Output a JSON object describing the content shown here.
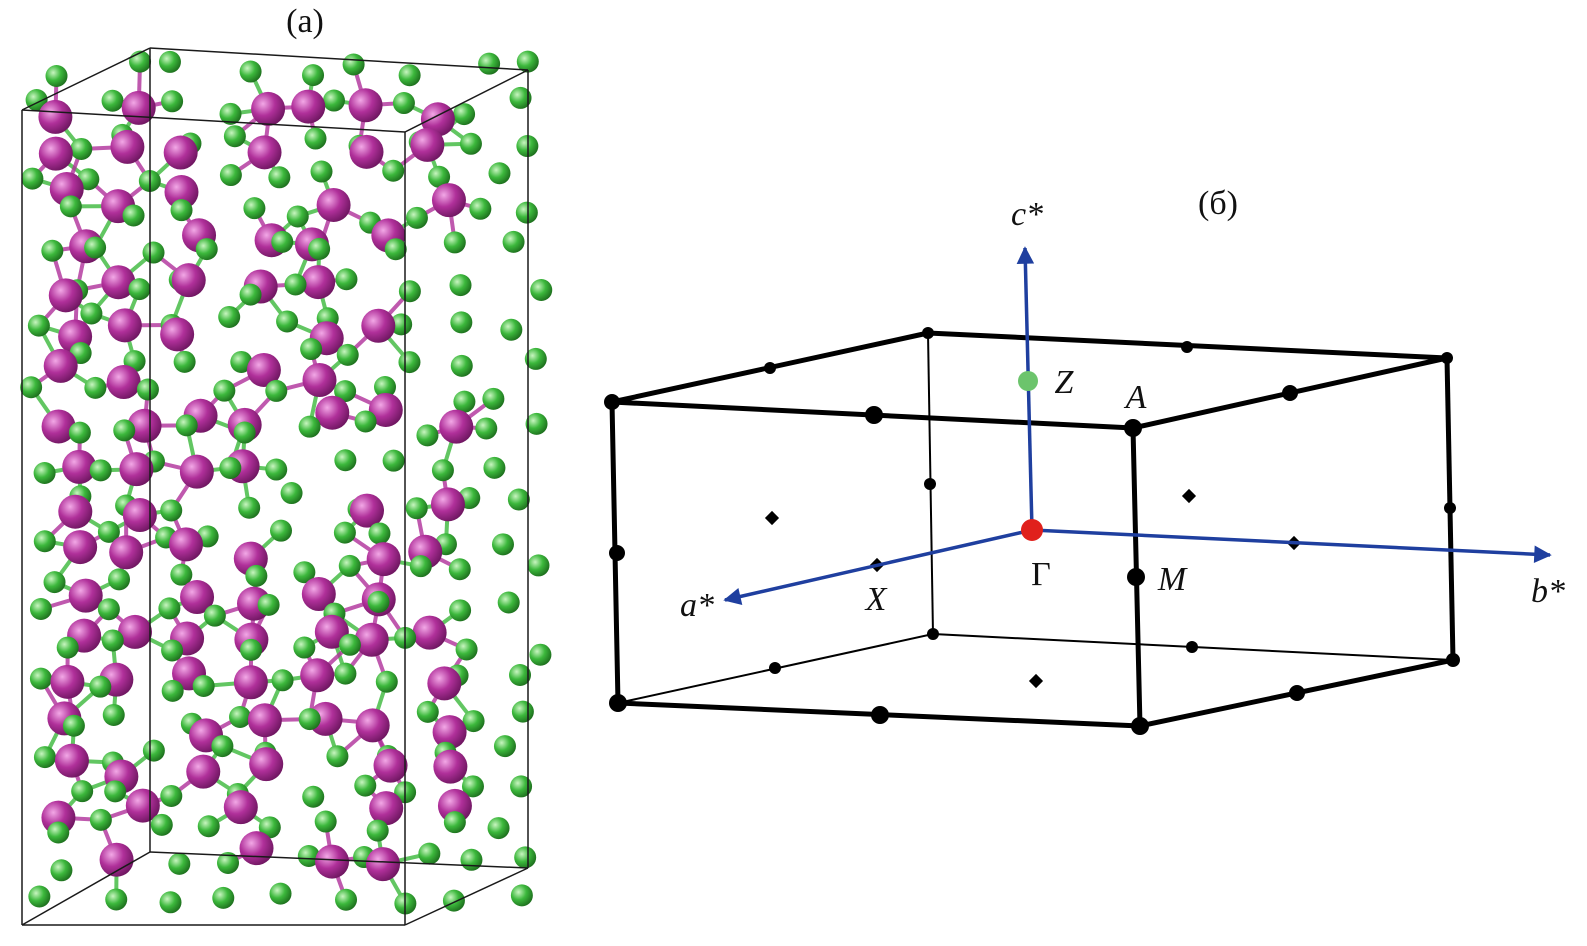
{
  "panel_a": {
    "label": "(a)",
    "atom_colors": {
      "large_atom": "#b0309a",
      "small_atom": "#3cb83c"
    }
  },
  "panel_b": {
    "label": "(б)",
    "axes": {
      "c": "c*",
      "a": "a*",
      "b": "b*"
    },
    "points": {
      "gamma": "Γ",
      "z": "Z",
      "a": "A",
      "m": "M",
      "x": "X"
    },
    "colors": {
      "axis": "#1f3f9f",
      "gamma": "#e0201c",
      "z": "#6cc46c",
      "edges": "#000000"
    }
  }
}
